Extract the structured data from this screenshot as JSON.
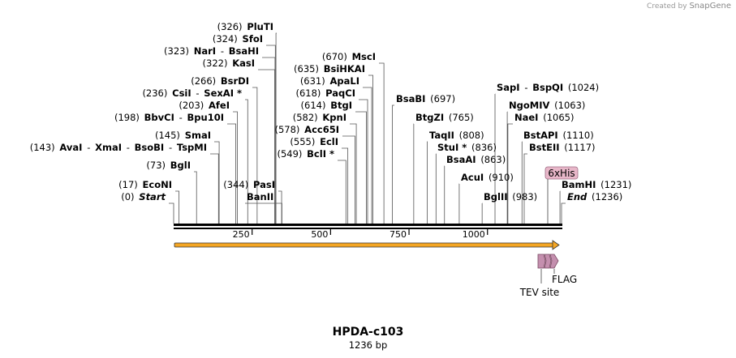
{
  "credit": {
    "prefix": "Created by",
    "brand": "SnapGene"
  },
  "title": "HPDA-c103",
  "subtitle": "1236 bp",
  "ruler": {
    "total_bp": 1236,
    "ticks": [
      {
        "bp": 250,
        "label": "250"
      },
      {
        "bp": 500,
        "label": "500"
      },
      {
        "bp": 750,
        "label": "750"
      },
      {
        "bp": 1000,
        "label": "1000"
      }
    ]
  },
  "colors": {
    "orf": "#f5a623",
    "feature": "#c48fae",
    "tag_bg": "#e8b7c9"
  },
  "sites": [
    {
      "bp": 326,
      "label": [
        {
          "t": "(326)",
          "b": false
        },
        {
          "t": "PluTI",
          "b": true
        }
      ]
    },
    {
      "bp": 324,
      "label": [
        {
          "t": "(324)",
          "b": false
        },
        {
          "t": "SfoI",
          "b": true
        }
      ]
    },
    {
      "bp": 323,
      "label": [
        {
          "t": "(323)",
          "b": false
        },
        {
          "t": "NarI",
          "b": true
        },
        {
          "t": "-",
          "b": false
        },
        {
          "t": "BsaHI",
          "b": true
        }
      ]
    },
    {
      "bp": 322,
      "label": [
        {
          "t": "(322)",
          "b": false
        },
        {
          "t": "KasI",
          "b": true
        }
      ]
    },
    {
      "bp": 266,
      "label": [
        {
          "t": "(266)",
          "b": false
        },
        {
          "t": "BsrDI",
          "b": true
        }
      ]
    },
    {
      "bp": 236,
      "label": [
        {
          "t": "(236)",
          "b": false
        },
        {
          "t": "CsiI",
          "b": true
        },
        {
          "t": "-",
          "b": false
        },
        {
          "t": "SexAI *",
          "b": true
        }
      ]
    },
    {
      "bp": 203,
      "label": [
        {
          "t": "(203)",
          "b": false
        },
        {
          "t": "AfeI",
          "b": true
        }
      ]
    },
    {
      "bp": 198,
      "label": [
        {
          "t": "(198)",
          "b": false
        },
        {
          "t": "BbvCI",
          "b": true
        },
        {
          "t": "-",
          "b": false
        },
        {
          "t": "Bpu10I",
          "b": true
        }
      ]
    },
    {
      "bp": 145,
      "label": [
        {
          "t": "(145)",
          "b": false
        },
        {
          "t": "SmaI",
          "b": true
        }
      ]
    },
    {
      "bp": 143,
      "label": [
        {
          "t": "(143)",
          "b": false
        },
        {
          "t": "AvaI",
          "b": true
        },
        {
          "t": "-",
          "b": false
        },
        {
          "t": "XmaI",
          "b": true
        },
        {
          "t": "-",
          "b": false
        },
        {
          "t": "BsoBI",
          "b": true
        },
        {
          "t": "-",
          "b": false
        },
        {
          "t": "TspMI",
          "b": true
        }
      ]
    },
    {
      "bp": 73,
      "label": [
        {
          "t": "(73)",
          "b": false
        },
        {
          "t": "BglI",
          "b": true
        }
      ]
    },
    {
      "bp": 17,
      "label": [
        {
          "t": "(17)",
          "b": false
        },
        {
          "t": "EcoNI",
          "b": true
        }
      ]
    },
    {
      "bp": 0,
      "label": [
        {
          "t": "(0)",
          "b": false
        },
        {
          "t": "Start",
          "b": true,
          "i": true
        }
      ]
    },
    {
      "bp": 344,
      "label": [
        {
          "t": "(344)",
          "b": false
        },
        {
          "t": "PasI",
          "b": true
        }
      ]
    },
    {
      "bp": 345,
      "label": [
        {
          "t": "BanII",
          "b": true
        }
      ]
    },
    {
      "bp": 670,
      "label": [
        {
          "t": "(670)",
          "b": false
        },
        {
          "t": "MscI",
          "b": true
        }
      ]
    },
    {
      "bp": 635,
      "label": [
        {
          "t": "(635)",
          "b": false
        },
        {
          "t": "BsiHKAI",
          "b": true
        }
      ]
    },
    {
      "bp": 631,
      "label": [
        {
          "t": "(631)",
          "b": false
        },
        {
          "t": "ApaLI",
          "b": true
        }
      ]
    },
    {
      "bp": 618,
      "label": [
        {
          "t": "(618)",
          "b": false
        },
        {
          "t": "PaqCI",
          "b": true
        }
      ]
    },
    {
      "bp": 614,
      "label": [
        {
          "t": "(614)",
          "b": false
        },
        {
          "t": "BtgI",
          "b": true
        }
      ]
    },
    {
      "bp": 582,
      "label": [
        {
          "t": "(582)",
          "b": false
        },
        {
          "t": "KpnI",
          "b": true
        }
      ]
    },
    {
      "bp": 578,
      "label": [
        {
          "t": "(578)",
          "b": false
        },
        {
          "t": "Acc65I",
          "b": true
        }
      ]
    },
    {
      "bp": 555,
      "label": [
        {
          "t": "(555)",
          "b": false
        },
        {
          "t": "EclI",
          "b": true
        }
      ]
    },
    {
      "bp": 549,
      "label": [
        {
          "t": "(549)",
          "b": false
        },
        {
          "t": "BclI *",
          "b": true
        }
      ]
    },
    {
      "bp": 697,
      "label": [
        {
          "t": "BsaBI",
          "b": true
        },
        {
          "t": "(697)",
          "b": false
        }
      ]
    },
    {
      "bp": 765,
      "label": [
        {
          "t": "BtgZI",
          "b": true
        },
        {
          "t": "(765)",
          "b": false
        }
      ]
    },
    {
      "bp": 808,
      "label": [
        {
          "t": "TaqII",
          "b": true
        },
        {
          "t": "(808)",
          "b": false
        }
      ]
    },
    {
      "bp": 836,
      "label": [
        {
          "t": "StuI *",
          "b": true
        },
        {
          "t": "(836)",
          "b": false
        }
      ]
    },
    {
      "bp": 863,
      "label": [
        {
          "t": "BsaAI",
          "b": true
        },
        {
          "t": "(863)",
          "b": false
        }
      ]
    },
    {
      "bp": 910,
      "label": [
        {
          "t": "AcuI",
          "b": true
        },
        {
          "t": "(910)",
          "b": false
        }
      ]
    },
    {
      "bp": 983,
      "label": [
        {
          "t": "BglII",
          "b": true
        },
        {
          "t": "(983)",
          "b": false
        }
      ]
    },
    {
      "bp": 1024,
      "label": [
        {
          "t": "SapI",
          "b": true
        },
        {
          "t": "-",
          "b": false
        },
        {
          "t": "BspQI",
          "b": true
        },
        {
          "t": "(1024)",
          "b": false
        }
      ]
    },
    {
      "bp": 1063,
      "label": [
        {
          "t": "NgoMIV",
          "b": true
        },
        {
          "t": "(1063)",
          "b": false
        }
      ]
    },
    {
      "bp": 1065,
      "label": [
        {
          "t": "NaeI",
          "b": true
        },
        {
          "t": "(1065)",
          "b": false
        }
      ]
    },
    {
      "bp": 1110,
      "label": [
        {
          "t": "BstAPI",
          "b": true
        },
        {
          "t": "(1110)",
          "b": false
        }
      ]
    },
    {
      "bp": 1117,
      "label": [
        {
          "t": "BstEII",
          "b": true
        },
        {
          "t": "(1117)",
          "b": false
        }
      ]
    },
    {
      "bp": 1231,
      "label": [
        {
          "t": "BamHI",
          "b": true
        },
        {
          "t": "(1231)",
          "b": false
        }
      ]
    },
    {
      "bp": 1236,
      "label": [
        {
          "t": "End",
          "b": true,
          "i": true
        },
        {
          "t": "(1236)",
          "b": false
        }
      ]
    }
  ],
  "features": {
    "tag": "6xHis",
    "tev": "TEV site",
    "flag": "FLAG"
  }
}
